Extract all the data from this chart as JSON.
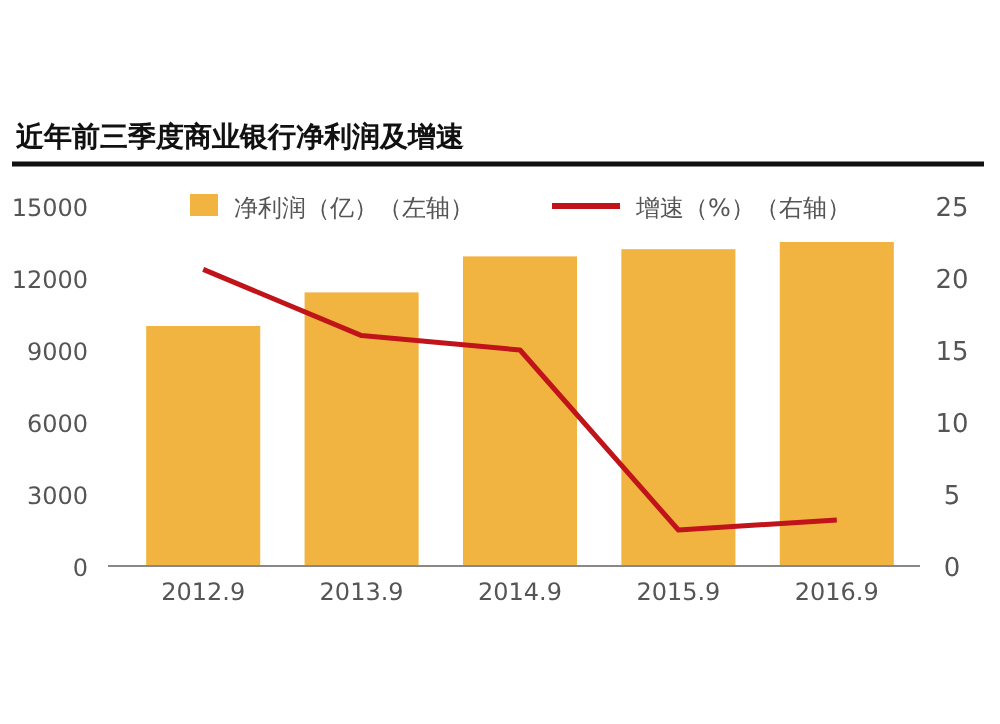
{
  "chart_data": {
    "type": "bar",
    "title": "近年前三季度商业银行净利润及增速",
    "categories": [
      "2012.9",
      "2013.9",
      "2014.9",
      "2015.9",
      "2016.9"
    ],
    "series": [
      {
        "name": "净利润（亿）（左轴）",
        "color": "#f2b441",
        "values": [
          10000,
          11400,
          12900,
          13200,
          13500
        ]
      },
      {
        "name": "增速（%）（右轴）",
        "type": "line",
        "axis": "y2",
        "color": "#c0141a",
        "values": [
          20.6,
          16,
          15,
          2.5,
          3.2
        ]
      }
    ],
    "ylim": [
      0,
      15000
    ],
    "yticks": [
      0,
      3000,
      6000,
      9000,
      12000,
      15000
    ],
    "y2lim": [
      0,
      25
    ],
    "y2ticks": [
      0,
      5,
      10,
      15,
      20,
      25
    ],
    "legend": "top",
    "grid": false,
    "marker": "none",
    "line_style": "solid"
  }
}
